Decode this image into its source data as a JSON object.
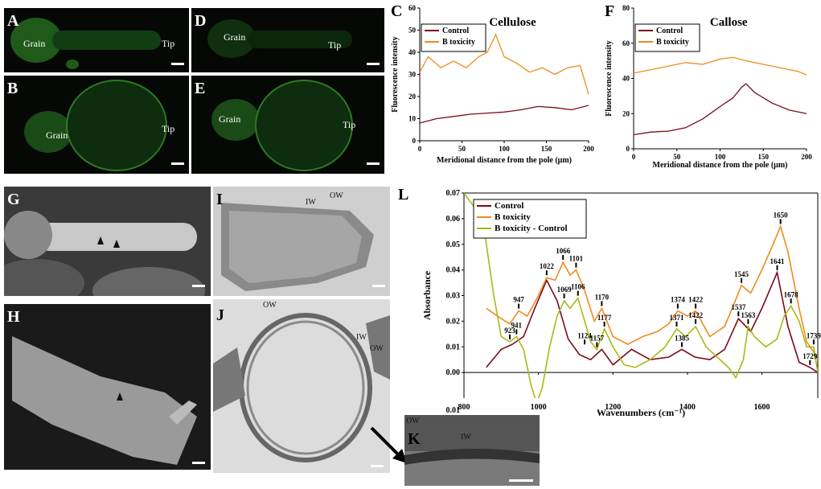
{
  "panels": {
    "A": {
      "label": "A",
      "grain": "Grain",
      "tip": "Tip"
    },
    "B": {
      "label": "B",
      "grain": "Grain",
      "tip": "Tip"
    },
    "D": {
      "label": "D",
      "grain": "Grain",
      "tip": "Tip"
    },
    "E": {
      "label": "E",
      "grain": "Grain",
      "tip": "Tip"
    },
    "G": {
      "label": "G"
    },
    "H": {
      "label": "H"
    },
    "I": {
      "label": "I",
      "iw": "IW",
      "ow": "OW"
    },
    "J": {
      "label": "J",
      "ow": "OW",
      "iw": "IW",
      "ow2": "OW"
    },
    "K": {
      "label": "K",
      "ow": "OW",
      "iw": "IW"
    }
  },
  "chart_data": [
    {
      "id": "C",
      "type": "line",
      "panel_label": "C",
      "title": "Cellulose",
      "xlabel": "Meridional distance from the pole (μm)",
      "ylabel": "Fluorescence intensity",
      "xlim": [
        0,
        200
      ],
      "ylim": [
        0,
        60
      ],
      "xticks": [
        0,
        50,
        100,
        150,
        200
      ],
      "yticks": [
        0,
        10,
        20,
        30,
        40,
        50,
        60
      ],
      "legend": "top-left",
      "series": [
        {
          "name": "Control",
          "color": "#7b0a1a",
          "points": [
            [
              0,
              8
            ],
            [
              20,
              10
            ],
            [
              40,
              11
            ],
            [
              60,
              12
            ],
            [
              80,
              12.5
            ],
            [
              100,
              13
            ],
            [
              120,
              14
            ],
            [
              140,
              15.5
            ],
            [
              160,
              15
            ],
            [
              180,
              14
            ],
            [
              200,
              16
            ]
          ]
        },
        {
          "name": "B toxicity",
          "color": "#f08a1e",
          "points": [
            [
              0,
              31
            ],
            [
              10,
              38
            ],
            [
              25,
              33
            ],
            [
              40,
              36
            ],
            [
              55,
              33
            ],
            [
              70,
              38
            ],
            [
              80,
              40
            ],
            [
              90,
              48
            ],
            [
              100,
              38
            ],
            [
              115,
              35
            ],
            [
              130,
              31
            ],
            [
              145,
              33
            ],
            [
              160,
              30
            ],
            [
              175,
              33
            ],
            [
              190,
              34
            ],
            [
              200,
              21
            ]
          ]
        }
      ]
    },
    {
      "id": "F",
      "type": "line",
      "panel_label": "F",
      "title": "Callose",
      "xlabel": "Meridional distance from the pole (μm)",
      "ylabel": "Fluorescence intensity",
      "xlim": [
        0,
        200
      ],
      "ylim": [
        0,
        80
      ],
      "xticks": [
        0,
        50,
        100,
        150,
        200
      ],
      "yticks": [
        0,
        20,
        40,
        60,
        80
      ],
      "legend": "top-left",
      "series": [
        {
          "name": "Control",
          "color": "#7b0a1a",
          "points": [
            [
              0,
              8
            ],
            [
              20,
              9.5
            ],
            [
              40,
              10
            ],
            [
              60,
              12
            ],
            [
              80,
              17
            ],
            [
              100,
              24
            ],
            [
              115,
              29
            ],
            [
              125,
              35
            ],
            [
              130,
              37
            ],
            [
              140,
              32
            ],
            [
              160,
              26
            ],
            [
              180,
              22
            ],
            [
              200,
              20
            ]
          ]
        },
        {
          "name": "B toxicity",
          "color": "#f08a1e",
          "points": [
            [
              0,
              43
            ],
            [
              20,
              45
            ],
            [
              40,
              47
            ],
            [
              60,
              49
            ],
            [
              80,
              48
            ],
            [
              100,
              51
            ],
            [
              115,
              52
            ],
            [
              130,
              50
            ],
            [
              150,
              48
            ],
            [
              170,
              46
            ],
            [
              190,
              44
            ],
            [
              200,
              42
            ]
          ]
        }
      ]
    },
    {
      "id": "L",
      "type": "line",
      "panel_label": "L",
      "xlabel": "Wavenumbers (cm⁻¹)",
      "ylabel": "Absorbance",
      "xlim": [
        800,
        1750
      ],
      "ylim": [
        -0.01,
        0.07
      ],
      "xticks": [
        800,
        1000,
        1200,
        1400,
        1600
      ],
      "yticks": [
        0.0,
        0.01,
        0.02,
        0.03,
        0.04,
        0.05,
        0.06,
        0.07
      ],
      "ytick_labels": [
        "0.00",
        "0.01",
        "0.02",
        "0.03",
        "0.04",
        "0.05",
        "0.06",
        "0.07"
      ],
      "below_axis_tick_label": "0.01",
      "legend": "top-left",
      "series": [
        {
          "name": "Control",
          "color": "#7b0a1a",
          "points": [
            [
              860,
              0.002
            ],
            [
              900,
              0.009
            ],
            [
              930,
              0.011
            ],
            [
              960,
              0.014
            ],
            [
              990,
              0.025
            ],
            [
              1022,
              0.036
            ],
            [
              1050,
              0.028
            ],
            [
              1080,
              0.013
            ],
            [
              1110,
              0.007
            ],
            [
              1140,
              0.005
            ],
            [
              1170,
              0.009
            ],
            [
              1200,
              0.003
            ],
            [
              1250,
              0.009
            ],
            [
              1300,
              0.005
            ],
            [
              1350,
              0.006
            ],
            [
              1385,
              0.009
            ],
            [
              1420,
              0.006
            ],
            [
              1460,
              0.005
            ],
            [
              1500,
              0.009
            ],
            [
              1537,
              0.021
            ],
            [
              1570,
              0.016
            ],
            [
              1600,
              0.025
            ],
            [
              1641,
              0.039
            ],
            [
              1670,
              0.018
            ],
            [
              1700,
              0.004
            ],
            [
              1729,
              0.002
            ],
            [
              1750,
              0.0
            ]
          ]
        },
        {
          "name": "B toxicity",
          "color": "#f08a1e",
          "points": [
            [
              860,
              0.025
            ],
            [
              900,
              0.021
            ],
            [
              923,
              0.019
            ],
            [
              947,
              0.024
            ],
            [
              970,
              0.022
            ],
            [
              1000,
              0.03
            ],
            [
              1022,
              0.037
            ],
            [
              1045,
              0.036
            ],
            [
              1066,
              0.043
            ],
            [
              1085,
              0.038
            ],
            [
              1101,
              0.04
            ],
            [
              1124,
              0.032
            ],
            [
              1150,
              0.02
            ],
            [
              1170,
              0.025
            ],
            [
              1200,
              0.014
            ],
            [
              1240,
              0.011
            ],
            [
              1280,
              0.014
            ],
            [
              1320,
              0.016
            ],
            [
              1350,
              0.019
            ],
            [
              1374,
              0.024
            ],
            [
              1400,
              0.022
            ],
            [
              1422,
              0.024
            ],
            [
              1460,
              0.014
            ],
            [
              1500,
              0.018
            ],
            [
              1520,
              0.025
            ],
            [
              1545,
              0.034
            ],
            [
              1570,
              0.031
            ],
            [
              1600,
              0.04
            ],
            [
              1630,
              0.05
            ],
            [
              1650,
              0.057
            ],
            [
              1670,
              0.047
            ],
            [
              1700,
              0.025
            ],
            [
              1720,
              0.012
            ],
            [
              1739,
              0.008
            ],
            [
              1750,
              0.005
            ]
          ]
        },
        {
          "name": "B toxicity - Control",
          "color": "#aab818",
          "points": [
            [
              800,
              0.07
            ],
            [
              850,
              0.06
            ],
            [
              880,
              0.03
            ],
            [
              900,
              0.014
            ],
            [
              923,
              0.012
            ],
            [
              941,
              0.014
            ],
            [
              960,
              0.009
            ],
            [
              980,
              -0.005
            ],
            [
              995,
              -0.012
            ],
            [
              1010,
              -0.006
            ],
            [
              1030,
              0.01
            ],
            [
              1050,
              0.022
            ],
            [
              1069,
              0.028
            ],
            [
              1085,
              0.025
            ],
            [
              1106,
              0.029
            ],
            [
              1124,
              0.02
            ],
            [
              1140,
              0.012
            ],
            [
              1157,
              0.009
            ],
            [
              1177,
              0.017
            ],
            [
              1200,
              0.01
            ],
            [
              1230,
              0.003
            ],
            [
              1260,
              0.002
            ],
            [
              1300,
              0.005
            ],
            [
              1340,
              0.01
            ],
            [
              1371,
              0.017
            ],
            [
              1395,
              0.014
            ],
            [
              1422,
              0.018
            ],
            [
              1450,
              0.01
            ],
            [
              1480,
              0.006
            ],
            [
              1510,
              0.002
            ],
            [
              1530,
              -0.002
            ],
            [
              1550,
              0.005
            ],
            [
              1563,
              0.018
            ],
            [
              1580,
              0.014
            ],
            [
              1610,
              0.01
            ],
            [
              1640,
              0.013
            ],
            [
              1660,
              0.022
            ],
            [
              1678,
              0.026
            ],
            [
              1700,
              0.02
            ],
            [
              1720,
              0.01
            ],
            [
              1739,
              0.01
            ],
            [
              1750,
              0.0
            ]
          ]
        }
      ],
      "peak_annotations": [
        {
          "label": "947",
          "x": 947,
          "y": 0.024
        },
        {
          "label": "923",
          "x": 923,
          "y": 0.012
        },
        {
          "label": "941",
          "x": 941,
          "y": 0.014
        },
        {
          "label": "1022",
          "x": 1022,
          "y": 0.037
        },
        {
          "label": "1066",
          "x": 1066,
          "y": 0.043
        },
        {
          "label": "1101",
          "x": 1101,
          "y": 0.04
        },
        {
          "label": "1069",
          "x": 1069,
          "y": 0.028
        },
        {
          "label": "1106",
          "x": 1106,
          "y": 0.029
        },
        {
          "label": "1170",
          "x": 1170,
          "y": 0.025
        },
        {
          "label": "1177",
          "x": 1177,
          "y": 0.017
        },
        {
          "label": "1124",
          "x": 1124,
          "y": 0.01
        },
        {
          "label": "1157",
          "x": 1157,
          "y": 0.009
        },
        {
          "label": "1374",
          "x": 1374,
          "y": 0.024
        },
        {
          "label": "1422",
          "x": 1422,
          "y": 0.024
        },
        {
          "label": "1371",
          "x": 1371,
          "y": 0.017
        },
        {
          "label": "1422",
          "x": 1422,
          "y": 0.018
        },
        {
          "label": "1385",
          "x": 1385,
          "y": 0.009
        },
        {
          "label": "1545",
          "x": 1545,
          "y": 0.034
        },
        {
          "label": "1537",
          "x": 1537,
          "y": 0.021
        },
        {
          "label": "1563",
          "x": 1563,
          "y": 0.018
        },
        {
          "label": "1650",
          "x": 1650,
          "y": 0.057
        },
        {
          "label": "1641",
          "x": 1641,
          "y": 0.039
        },
        {
          "label": "1678",
          "x": 1678,
          "y": 0.026
        },
        {
          "label": "1739",
          "x": 1739,
          "y": 0.01
        },
        {
          "label": "1729",
          "x": 1729,
          "y": 0.002
        }
      ]
    }
  ]
}
